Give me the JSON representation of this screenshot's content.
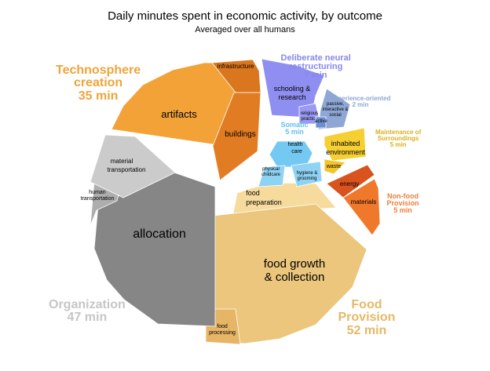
{
  "chart_data": {
    "type": "pie",
    "title": "Daily minutes spent in economic activity, by outcome",
    "subtitle": "Averaged over all humans",
    "groups": [
      {
        "name": "Technosphere creation",
        "value_label": "35 min",
        "color": "#f0a030",
        "label_color": "#efa43a",
        "slices": [
          {
            "label": "artifacts",
            "color": "#f2a236"
          },
          {
            "label": "infrastructure",
            "color": "#d9761e"
          },
          {
            "label": "buildings",
            "color": "#e27c23"
          }
        ]
      },
      {
        "name": "Deliberate neural restructuring",
        "value_label": "7 min",
        "color": "#8f8ff2",
        "label_color": "#8787ee",
        "slices": [
          {
            "label": "schooling & research",
            "color": "#8f8ff2"
          },
          {
            "label": "religious practice",
            "color": "#9a9af4"
          }
        ]
      },
      {
        "name": "Experience-oriented",
        "value_label": "2 min",
        "color": "#8ea7d5",
        "label_color": "#8ea7d5",
        "slices": [
          {
            "label": "passive, interactive & social",
            "color": "#8ea7d5"
          },
          {
            "label": "active",
            "color": "#6d8ed0"
          }
        ]
      },
      {
        "name": "Maintenance of Surroundings",
        "value_label": "5 min",
        "color": "#f5cc2e",
        "label_color": "#dcb020",
        "slices": [
          {
            "label": "inhabited environment",
            "color": "#f6cf33"
          },
          {
            "label": "waste",
            "color": "#f3c52a"
          }
        ]
      },
      {
        "name": "Non-food Provision",
        "value_label": "5 min",
        "color": "#f07a2e",
        "label_color": "#ee7f3b",
        "slices": [
          {
            "label": "energy",
            "color": "#d9531f"
          },
          {
            "label": "materials",
            "color": "#f0782b"
          }
        ]
      },
      {
        "name": "Food Provision",
        "value_label": "52 min",
        "color": "#ebc880",
        "label_color": "#e5b867",
        "slices": [
          {
            "label": "food preparation",
            "color": "#f6db9c"
          },
          {
            "label": "food growth & collection",
            "color": "#ebc67c"
          },
          {
            "label": "food processing",
            "color": "#e6b566"
          }
        ]
      },
      {
        "name": "Organization",
        "value_label": "47 min",
        "color": "#888888",
        "label_color": "#c6c6c6",
        "slices": [
          {
            "label": "allocation",
            "color": "#868686"
          },
          {
            "label": "human transportation",
            "color": "#adadad"
          },
          {
            "label": "material transportation",
            "color": "#cbcbcb"
          }
        ]
      },
      {
        "name": "Somatic",
        "value_label": "5 min",
        "color": "#6fc6f0",
        "label_color": "#62c0ec",
        "slices": [
          {
            "label": "health care",
            "color": "#74c9f2"
          },
          {
            "label": "physical childcare",
            "color": "#8fd3f4"
          },
          {
            "label": "hygiene & grooming",
            "color": "#8fd3f4"
          }
        ]
      }
    ]
  }
}
